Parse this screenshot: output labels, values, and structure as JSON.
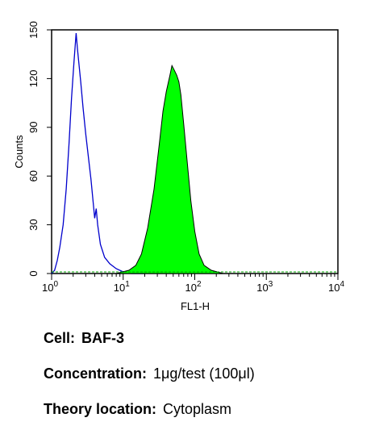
{
  "chart_data": {
    "type": "area",
    "xlabel": "FL1-H",
    "ylabel": "Counts",
    "xscale": "log",
    "xlim": [
      1,
      10000
    ],
    "ylim": [
      0,
      150
    ],
    "yticks": [
      0,
      30,
      60,
      90,
      120,
      150
    ],
    "xticks": [
      {
        "base": "10",
        "exp": "0",
        "value": 1
      },
      {
        "base": "10",
        "exp": "1",
        "value": 10
      },
      {
        "base": "10",
        "exp": "2",
        "value": 100
      },
      {
        "base": "10",
        "exp": "3",
        "value": 1000
      },
      {
        "base": "10",
        "exp": "4",
        "value": 10000
      }
    ],
    "grid": false,
    "series": [
      {
        "style": "outline",
        "color": "#0000cc",
        "points": [
          [
            1.0,
            0
          ],
          [
            1.1,
            2
          ],
          [
            1.2,
            8
          ],
          [
            1.3,
            16
          ],
          [
            1.45,
            30
          ],
          [
            1.6,
            52
          ],
          [
            1.75,
            80
          ],
          [
            1.9,
            108
          ],
          [
            2.05,
            130
          ],
          [
            2.2,
            148
          ],
          [
            2.3,
            138
          ],
          [
            2.4,
            130
          ],
          [
            2.55,
            118
          ],
          [
            2.75,
            102
          ],
          [
            3.0,
            86
          ],
          [
            3.3,
            70
          ],
          [
            3.55,
            58
          ],
          [
            3.8,
            44
          ],
          [
            4.0,
            34
          ],
          [
            4.2,
            40
          ],
          [
            4.4,
            30
          ],
          [
            4.8,
            18
          ],
          [
            5.5,
            10
          ],
          [
            6.5,
            6
          ],
          [
            8.0,
            3
          ],
          [
            10.0,
            1
          ],
          [
            13.0,
            0
          ],
          [
            20.0,
            0
          ]
        ]
      },
      {
        "style": "filled",
        "color": "#00ff00",
        "edge": "#000000",
        "points": [
          [
            8.0,
            0
          ],
          [
            12.0,
            2
          ],
          [
            15.0,
            5
          ],
          [
            18.0,
            12
          ],
          [
            22.0,
            28
          ],
          [
            27.0,
            52
          ],
          [
            32.0,
            80
          ],
          [
            36.0,
            100
          ],
          [
            40.0,
            112
          ],
          [
            45.0,
            122
          ],
          [
            48.0,
            128
          ],
          [
            52.0,
            125
          ],
          [
            56.0,
            122
          ],
          [
            60.0,
            118
          ],
          [
            64.0,
            110
          ],
          [
            70.0,
            92
          ],
          [
            78.0,
            70
          ],
          [
            88.0,
            45
          ],
          [
            100.0,
            26
          ],
          [
            115.0,
            12
          ],
          [
            135.0,
            5
          ],
          [
            170.0,
            2
          ],
          [
            250.0,
            0
          ]
        ]
      },
      {
        "style": "baseline",
        "color": "#00aa00",
        "points": [
          [
            1.0,
            1
          ],
          [
            10.0,
            1
          ],
          [
            1000.0,
            1
          ],
          [
            10000.0,
            1
          ]
        ]
      }
    ]
  },
  "info": {
    "cell_label": "Cell:",
    "cell_value": "BAF-3",
    "concentration_label": "Concentration:",
    "concentration_value": "1μg/test (100μl)",
    "theory_label": "Theory location:",
    "theory_value": "Cytoplasm"
  }
}
